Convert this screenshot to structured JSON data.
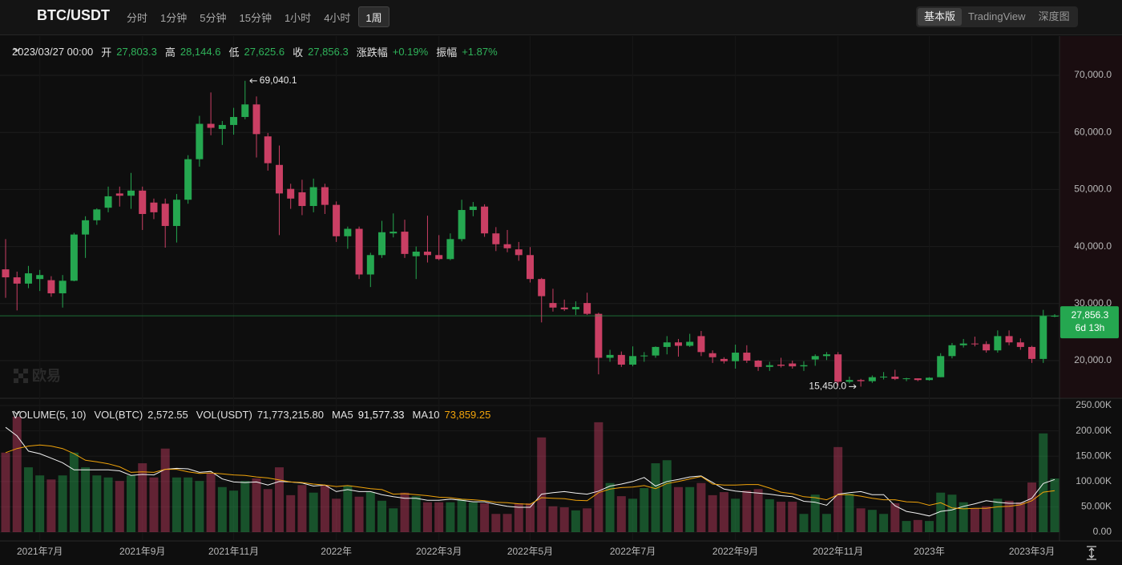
{
  "header": {
    "symbol": "BTC/USDT",
    "intervals": [
      "分时",
      "1分钟",
      "5分钟",
      "15分钟",
      "1小时",
      "4小时",
      "1周"
    ],
    "active_interval": 6,
    "views": [
      "基本版",
      "TradingView",
      "深度图"
    ],
    "active_view": 0
  },
  "info": {
    "date": "2023/03/27 00:00",
    "fields": [
      {
        "label": "开",
        "value": "27,803.3"
      },
      {
        "label": "高",
        "value": "28,144.6"
      },
      {
        "label": "低",
        "value": "27,625.6"
      },
      {
        "label": "收",
        "value": "27,856.3"
      },
      {
        "label": "涨跌幅",
        "value": "+0.19%"
      },
      {
        "label": "振幅",
        "value": "+1.87%"
      }
    ]
  },
  "watermark": "欧易",
  "volume_legend": {
    "title": "VOLUME(5, 10)",
    "items": [
      {
        "label": "VOL(BTC)",
        "value": "2,572.55"
      },
      {
        "label": "VOL(USDT)",
        "value": "71,773,215.80"
      }
    ]
  },
  "chart_data": {
    "type": "candlestick",
    "up_color": "#25a750",
    "down_color": "#ca3f64",
    "open": [
      36000,
      34600,
      33500,
      34300,
      34100,
      31800,
      34000,
      42100,
      44600,
      46800,
      49300,
      48900,
      49800,
      47700,
      47500,
      43600,
      48200,
      55300,
      61500,
      60600,
      61300,
      62700,
      64900,
      59300,
      54300,
      50100,
      49500,
      47100,
      50400,
      47300,
      41800,
      43100,
      35100,
      38500,
      42300,
      42600,
      38300,
      39100,
      38500,
      37800,
      41300,
      46400,
      47000,
      42300,
      40400,
      39500,
      38500,
      34300,
      30100,
      29300,
      29000,
      30100,
      28200,
      20500,
      21000,
      19300,
      20800,
      20900,
      22400,
      23200,
      22600,
      24300,
      21300,
      20300,
      19900,
      21400,
      20000,
      18900,
      19300,
      19500,
      19000,
      20200,
      20800,
      21100,
      16300,
      16600,
      16400,
      17100,
      17200,
      16800,
      16900,
      16600,
      17100,
      20800,
      22700,
      23000,
      22900,
      21800,
      24300,
      23200,
      22400,
      20300,
      27803.3
    ],
    "high": [
      41300,
      35600,
      36600,
      35900,
      34800,
      35000,
      42400,
      45300,
      46700,
      50500,
      50500,
      52900,
      50500,
      48400,
      48400,
      49200,
      56000,
      62900,
      67000,
      62000,
      64300,
      69040.1,
      66300,
      59900,
      57700,
      51000,
      51700,
      51900,
      51000,
      47900,
      43500,
      43500,
      38900,
      44500,
      45800,
      44700,
      40000,
      45400,
      42000,
      42300,
      48200,
      47800,
      47400,
      43400,
      42900,
      40800,
      39900,
      34500,
      32600,
      30700,
      30400,
      31900,
      28400,
      21900,
      21600,
      22500,
      21500,
      22500,
      24300,
      23800,
      24700,
      25200,
      21800,
      20600,
      22800,
      22700,
      20100,
      19800,
      20500,
      20000,
      19900,
      21100,
      21500,
      21500,
      17200,
      16800,
      17400,
      18000,
      18400,
      17000,
      16900,
      17100,
      21300,
      23100,
      23800,
      24200,
      23400,
      25300,
      25300,
      23900,
      22600,
      28900,
      28144.6
    ],
    "low": [
      31000,
      28800,
      32700,
      32200,
      31200,
      29300,
      33900,
      38000,
      43800,
      46000,
      47000,
      46600,
      42900,
      44800,
      39800,
      40700,
      47500,
      54000,
      59500,
      57800,
      59600,
      62300,
      55600,
      53300,
      42000,
      46600,
      45500,
      46000,
      45700,
      40800,
      39600,
      34300,
      32900,
      38000,
      41600,
      38000,
      34300,
      37200,
      37600,
      37600,
      40900,
      45300,
      41700,
      39200,
      39000,
      37500,
      33700,
      26700,
      28600,
      28700,
      28000,
      28000,
      17600,
      19800,
      18900,
      19000,
      19800,
      20500,
      21100,
      20700,
      22400,
      20800,
      19600,
      19500,
      18600,
      19600,
      18200,
      18200,
      18800,
      18600,
      18200,
      19100,
      20100,
      15600,
      16000,
      15450,
      16100,
      16700,
      16600,
      16400,
      16400,
      16500,
      17100,
      20400,
      22300,
      22500,
      21400,
      21400,
      22700,
      21900,
      19600,
      19600,
      27625.6
    ],
    "close": [
      34600,
      33500,
      35300,
      35000,
      31800,
      34000,
      42100,
      44600,
      46500,
      48800,
      48900,
      49800,
      45700,
      46000,
      43600,
      48200,
      55300,
      61500,
      60800,
      61300,
      62700,
      64900,
      59700,
      54600,
      49300,
      48400,
      47100,
      50400,
      47300,
      41800,
      43100,
      35100,
      38500,
      42500,
      42600,
      38700,
      39100,
      38500,
      37800,
      41300,
      46400,
      47000,
      42300,
      40400,
      39700,
      38500,
      34300,
      31300,
      29300,
      29000,
      29400,
      28200,
      20500,
      21000,
      19300,
      20800,
      20900,
      22400,
      23200,
      22600,
      23300,
      21500,
      20600,
      19900,
      21400,
      20000,
      18900,
      19200,
      19100,
      19000,
      19200,
      20800,
      21100,
      16300,
      16600,
      16400,
      17100,
      17200,
      16800,
      16900,
      16600,
      17000,
      20800,
      22700,
      23000,
      22900,
      21800,
      24300,
      23200,
      22400,
      20300,
      27800,
      27856.3
    ],
    "ylim": [
      13400,
      76880
    ],
    "yticks": [
      {
        "value": 20000,
        "label": "20,000.0"
      },
      {
        "value": 30000,
        "label": "30,000.0"
      },
      {
        "value": 40000,
        "label": "40,000.0"
      },
      {
        "value": 50000,
        "label": "50,000.0"
      },
      {
        "value": 60000,
        "label": "60,000.0"
      },
      {
        "value": 70000,
        "label": "70,000.0"
      }
    ],
    "xticks": [
      {
        "value": 3,
        "label": "2021年7月"
      },
      {
        "value": 12,
        "label": "2021年9月"
      },
      {
        "value": 20,
        "label": "2021年11月"
      },
      {
        "value": 29,
        "label": "2022年"
      },
      {
        "value": 38,
        "label": "2022年3月"
      },
      {
        "value": 46,
        "label": "2022年5月"
      },
      {
        "value": 55,
        "label": "2022年7月"
      },
      {
        "value": 64,
        "label": "2022年9月"
      },
      {
        "value": 73,
        "label": "2022年11月"
      },
      {
        "value": 81,
        "label": "2023年"
      },
      {
        "value": 90,
        "label": "2023年3月"
      }
    ],
    "grid": true,
    "last_price": {
      "value": 27856.3,
      "label": "27,856.3",
      "countdown": "6d 13h"
    },
    "extremes": {
      "max": {
        "index": 21,
        "value": 69040.1,
        "label": "69,040.1"
      },
      "min": {
        "index": 75,
        "value": 15450,
        "label": "15,450.0"
      }
    },
    "volume": {
      "values": [
        157000,
        228000,
        128000,
        112000,
        104000,
        112000,
        157000,
        128000,
        112000,
        108000,
        101000,
        112000,
        136000,
        108000,
        165000,
        108000,
        108000,
        101000,
        117000,
        89000,
        82000,
        101000,
        106000,
        85000,
        128000,
        73000,
        93000,
        78000,
        92000,
        66000,
        92000,
        70000,
        79000,
        62000,
        47000,
        78000,
        71000,
        59000,
        59000,
        59000,
        65000,
        59000,
        57000,
        36000,
        36000,
        57000,
        57000,
        187000,
        51000,
        49000,
        43000,
        47000,
        217000,
        97000,
        71000,
        66000,
        87000,
        136000,
        142000,
        89000,
        89000,
        97000,
        73000,
        79000,
        66000,
        82000,
        85000,
        65000,
        60000,
        60000,
        36000,
        74000,
        36000,
        168000,
        76000,
        47000,
        44000,
        36000,
        57000,
        22000,
        24000,
        22000,
        78000,
        74000,
        59000,
        47000,
        51000,
        66000,
        62000,
        59000,
        98000,
        195000,
        106000
      ],
      "ylim": [
        0,
        260000
      ],
      "yticks": [
        {
          "value": 0,
          "label": "0.00"
        },
        {
          "value": 50000,
          "label": "50.00K"
        },
        {
          "value": 100000,
          "label": "100.00K"
        },
        {
          "value": 150000,
          "label": "150.00K"
        },
        {
          "value": 200000,
          "label": "200.00K"
        },
        {
          "value": 250000,
          "label": "250.00K"
        }
      ],
      "ma": [
        {
          "name": "MA5",
          "color": "#f2f2f2",
          "current": "91,577.33",
          "values": [
            207000,
            190000,
            160000,
            155000,
            146000,
            137000,
            123000,
            123000,
            123000,
            123000,
            121000,
            112000,
            114000,
            113000,
            124000,
            126000,
            125000,
            118000,
            120000,
            105000,
            99000,
            98000,
            99000,
            93000,
            100000,
            99000,
            97000,
            91000,
            93000,
            80000,
            84000,
            80000,
            80000,
            74000,
            70000,
            67000,
            67000,
            63000,
            63000,
            65000,
            63000,
            60000,
            60000,
            55000,
            51000,
            49000,
            49000,
            75000,
            78000,
            80000,
            77000,
            75000,
            81000,
            91000,
            95000,
            100000,
            108000,
            91000,
            100000,
            104000,
            109000,
            111000,
            98000,
            85000,
            81000,
            79000,
            77000,
            75000,
            72000,
            70000,
            61000,
            59000,
            53000,
            75000,
            78000,
            80000,
            74000,
            74000,
            52000,
            41000,
            37000,
            32000,
            41000,
            44000,
            51000,
            56000,
            62000,
            59000,
            57000,
            57000,
            67000,
            96000,
            104000
          ]
        },
        {
          "name": "MA10",
          "color": "#f0a30a",
          "current": "73,859.25",
          "values": [
            157000,
            165000,
            170000,
            172000,
            170000,
            165000,
            155000,
            142000,
            139000,
            135000,
            129000,
            118000,
            119000,
            118000,
            124000,
            124000,
            119000,
            116000,
            117000,
            115000,
            113000,
            112000,
            109000,
            107000,
            103000,
            99000,
            98000,
            95000,
            93000,
            90000,
            92000,
            89000,
            86000,
            84000,
            75000,
            76000,
            74000,
            72000,
            69000,
            68000,
            65000,
            64000,
            62000,
            59000,
            58000,
            56000,
            55000,
            68000,
            67000,
            66000,
            63000,
            62000,
            78000,
            85000,
            88000,
            89000,
            92000,
            86000,
            96000,
            100000,
            105000,
            110000,
            95000,
            93000,
            93000,
            94000,
            94000,
            87000,
            79000,
            76000,
            70000,
            68000,
            64000,
            74000,
            74000,
            71000,
            67000,
            64000,
            64000,
            60000,
            59000,
            53000,
            58000,
            48000,
            46000,
            47000,
            47000,
            50000,
            51000,
            54000,
            62000,
            79000,
            82000
          ]
        }
      ]
    }
  }
}
